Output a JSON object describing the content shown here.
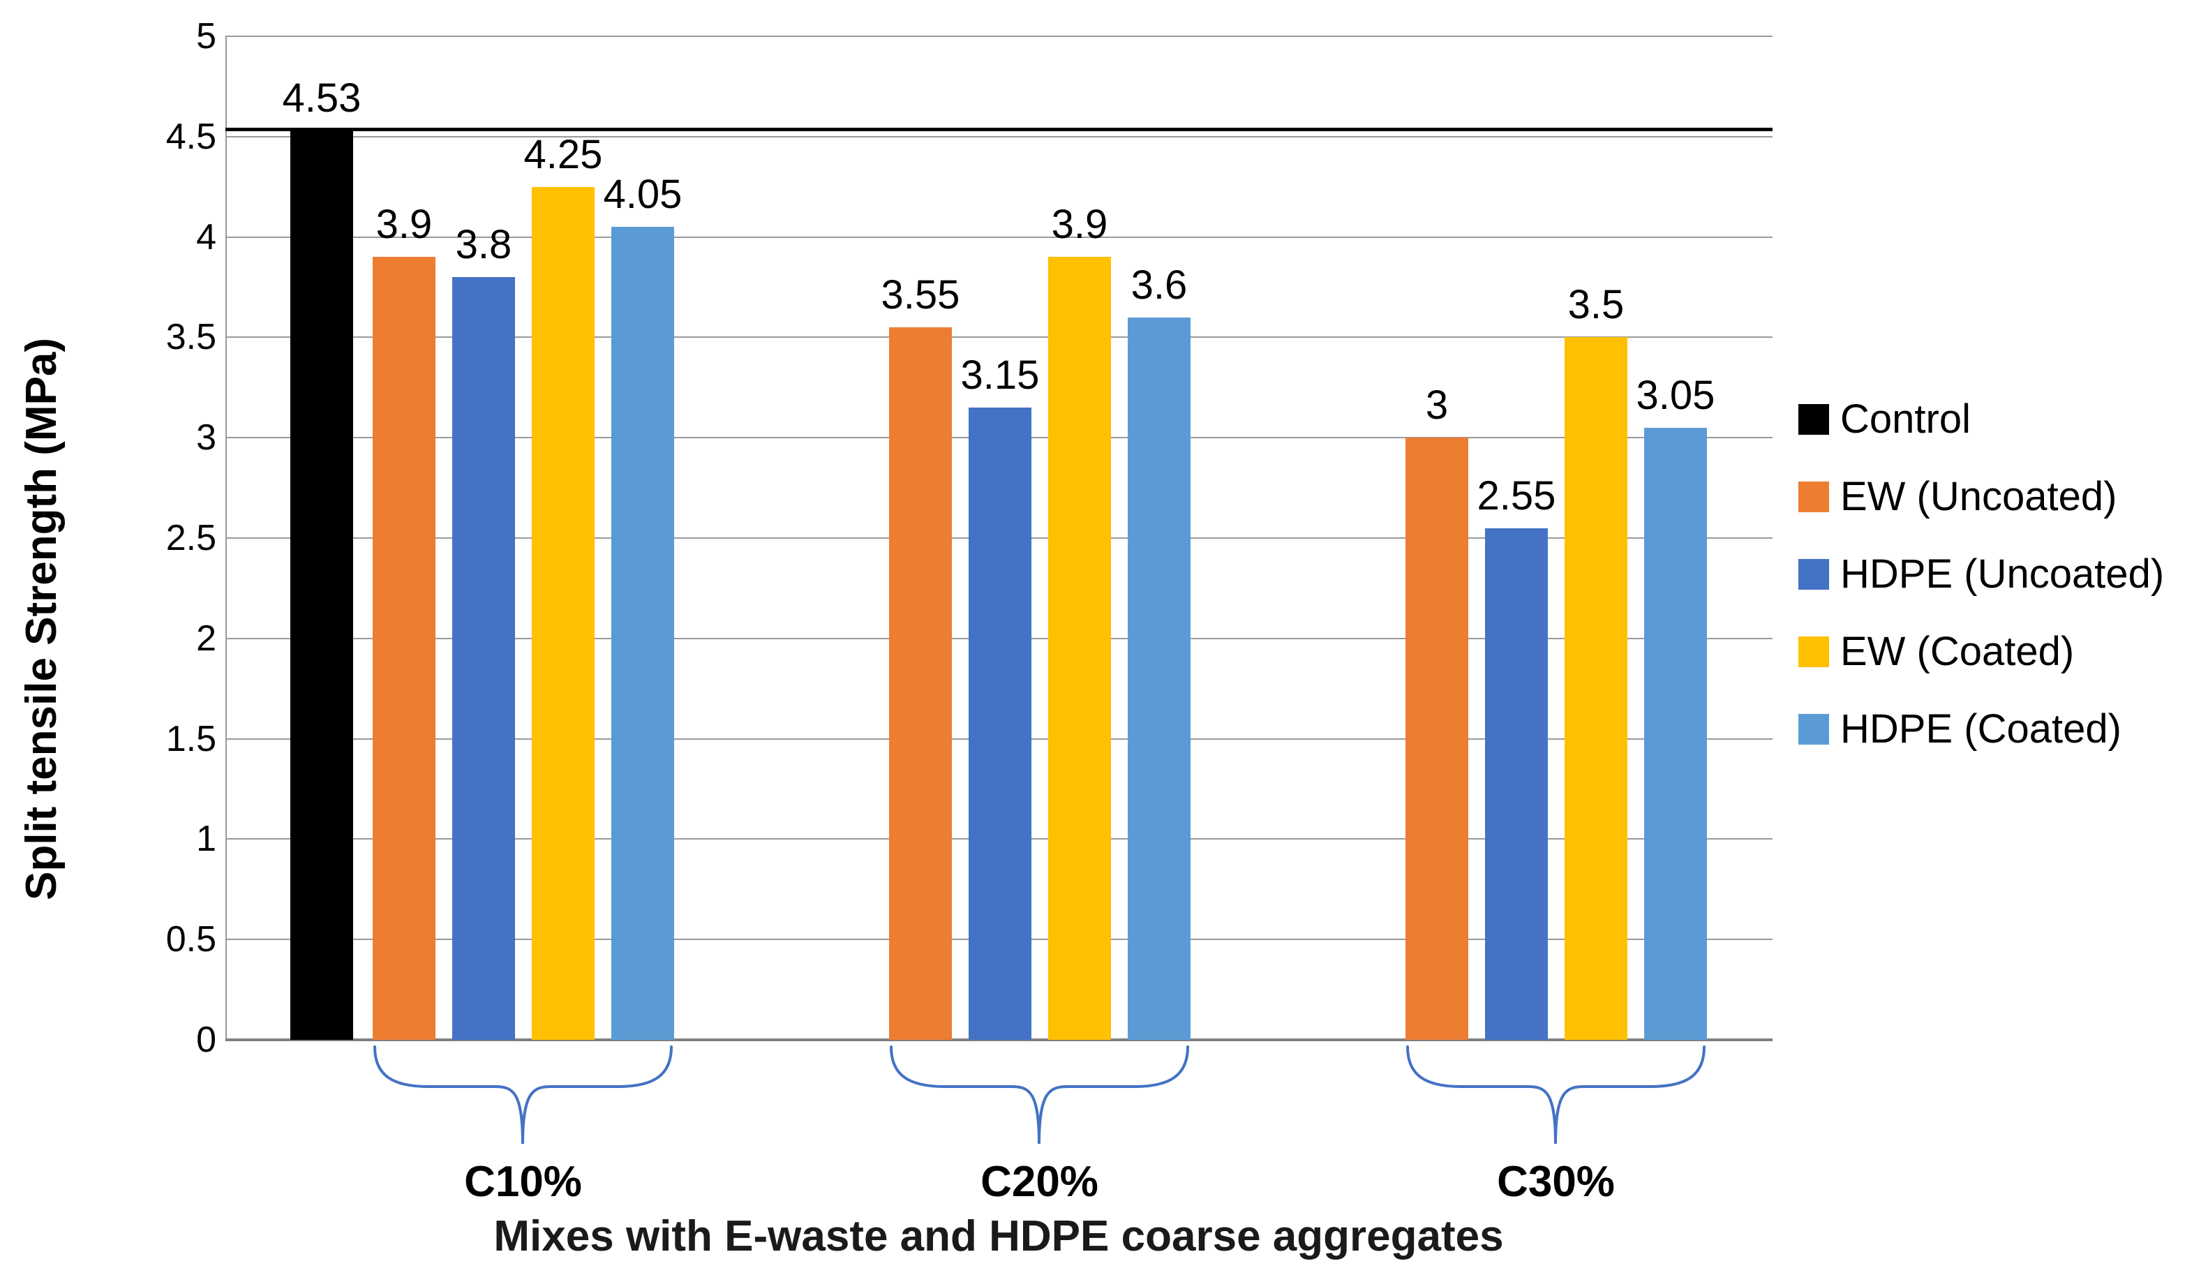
{
  "chart_data": {
    "type": "bar",
    "title": "",
    "ylabel": "Split tensile Strength (MPa)",
    "xlabel": "Mixes with E-waste and HDPE coarse aggregates",
    "ylim": [
      0,
      5
    ],
    "ytick_step": 0.5,
    "yticks": [
      "5",
      "4.5",
      "4",
      "3.5",
      "3",
      "2.5",
      "2",
      "1.5",
      "1",
      "0.5",
      "0"
    ],
    "grid": true,
    "legend_position": "right",
    "control": {
      "name": "Control",
      "color": "#000000",
      "value": 4.53,
      "label": "4.53"
    },
    "reference_line": {
      "value": 4.53,
      "color": "#000000"
    },
    "series": [
      {
        "name": "EW (Uncoated)",
        "color": "#ED7D31"
      },
      {
        "name": "HDPE (Uncoated)",
        "color": "#4472C4"
      },
      {
        "name": "EW (Coated)",
        "color": "#FFC000"
      },
      {
        "name": "HDPE (Coated)",
        "color": "#5B9BD5"
      }
    ],
    "categories": [
      "C10%",
      "C20%",
      "C30%"
    ],
    "groups": [
      {
        "label": "C10%",
        "values": [
          3.9,
          3.8,
          4.25,
          4.05
        ],
        "labels": [
          "3.9",
          "3.8",
          "4.25",
          "4.05"
        ]
      },
      {
        "label": "C20%",
        "values": [
          3.55,
          3.15,
          3.9,
          3.6
        ],
        "labels": [
          "3.55",
          "3.15",
          "3.9",
          "3.6"
        ]
      },
      {
        "label": "C30%",
        "values": [
          3,
          2.55,
          3.5,
          3.05
        ],
        "labels": [
          "3",
          "2.55",
          "3.5",
          "3.05"
        ]
      }
    ],
    "legend": [
      {
        "name": "Control",
        "color": "#000000"
      },
      {
        "name": "EW (Uncoated)",
        "color": "#ED7D31"
      },
      {
        "name": "HDPE (Uncoated)",
        "color": "#4472C4"
      },
      {
        "name": "EW (Coated)",
        "color": "#FFC000"
      },
      {
        "name": "HDPE (Coated)",
        "color": "#5B9BD5"
      }
    ],
    "brace_color": "#4472C4",
    "gridline_color": "#9a9a9a",
    "axis_color": "#808080"
  }
}
